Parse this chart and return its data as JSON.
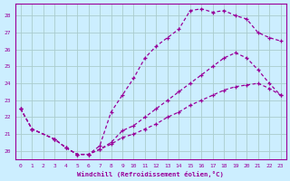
{
  "bg_color": "#cceeff",
  "grid_color": "#aacccc",
  "line_color": "#990099",
  "xlabel": "Windchill (Refroidissement éolien,°C)",
  "xlim": [
    -0.5,
    23.5
  ],
  "ylim": [
    19.5,
    28.7
  ],
  "xticks": [
    0,
    1,
    2,
    3,
    4,
    5,
    6,
    7,
    8,
    9,
    10,
    11,
    12,
    13,
    14,
    15,
    16,
    17,
    18,
    19,
    20,
    21,
    22,
    23
  ],
  "yticks": [
    20,
    21,
    22,
    23,
    24,
    25,
    26,
    27,
    28
  ],
  "line1_x": [
    0,
    1,
    3,
    4,
    5,
    6,
    7,
    8,
    9,
    10,
    11,
    12,
    13,
    14,
    15,
    16,
    17,
    18,
    19,
    20,
    21,
    22,
    23
  ],
  "line1_y": [
    22.5,
    21.3,
    20.7,
    20.2,
    19.8,
    19.8,
    20.3,
    22.3,
    23.3,
    24.3,
    25.5,
    26.2,
    26.7,
    27.2,
    28.3,
    28.4,
    28.2,
    28.3,
    28.0,
    27.8,
    27.0,
    26.7,
    26.5
  ],
  "line2_x": [
    0,
    1,
    3,
    4,
    5,
    6,
    7,
    8,
    9,
    10,
    11,
    12,
    13,
    14,
    15,
    16,
    17,
    18,
    19,
    20,
    21,
    22,
    23
  ],
  "line2_y": [
    22.5,
    21.3,
    20.7,
    20.2,
    19.8,
    19.8,
    20.1,
    20.5,
    21.2,
    21.5,
    22.0,
    22.5,
    23.0,
    23.5,
    24.0,
    24.5,
    25.0,
    25.5,
    25.8,
    25.5,
    24.8,
    24.0,
    23.3
  ],
  "line3_x": [
    0,
    1,
    3,
    4,
    5,
    6,
    7,
    8,
    9,
    10,
    11,
    12,
    13,
    14,
    15,
    16,
    17,
    18,
    19,
    20,
    21,
    22,
    23
  ],
  "line3_y": [
    22.5,
    21.3,
    20.7,
    20.2,
    19.8,
    19.8,
    20.1,
    20.4,
    20.8,
    21.0,
    21.3,
    21.6,
    22.0,
    22.3,
    22.7,
    23.0,
    23.3,
    23.6,
    23.8,
    23.9,
    24.0,
    23.7,
    23.3
  ]
}
